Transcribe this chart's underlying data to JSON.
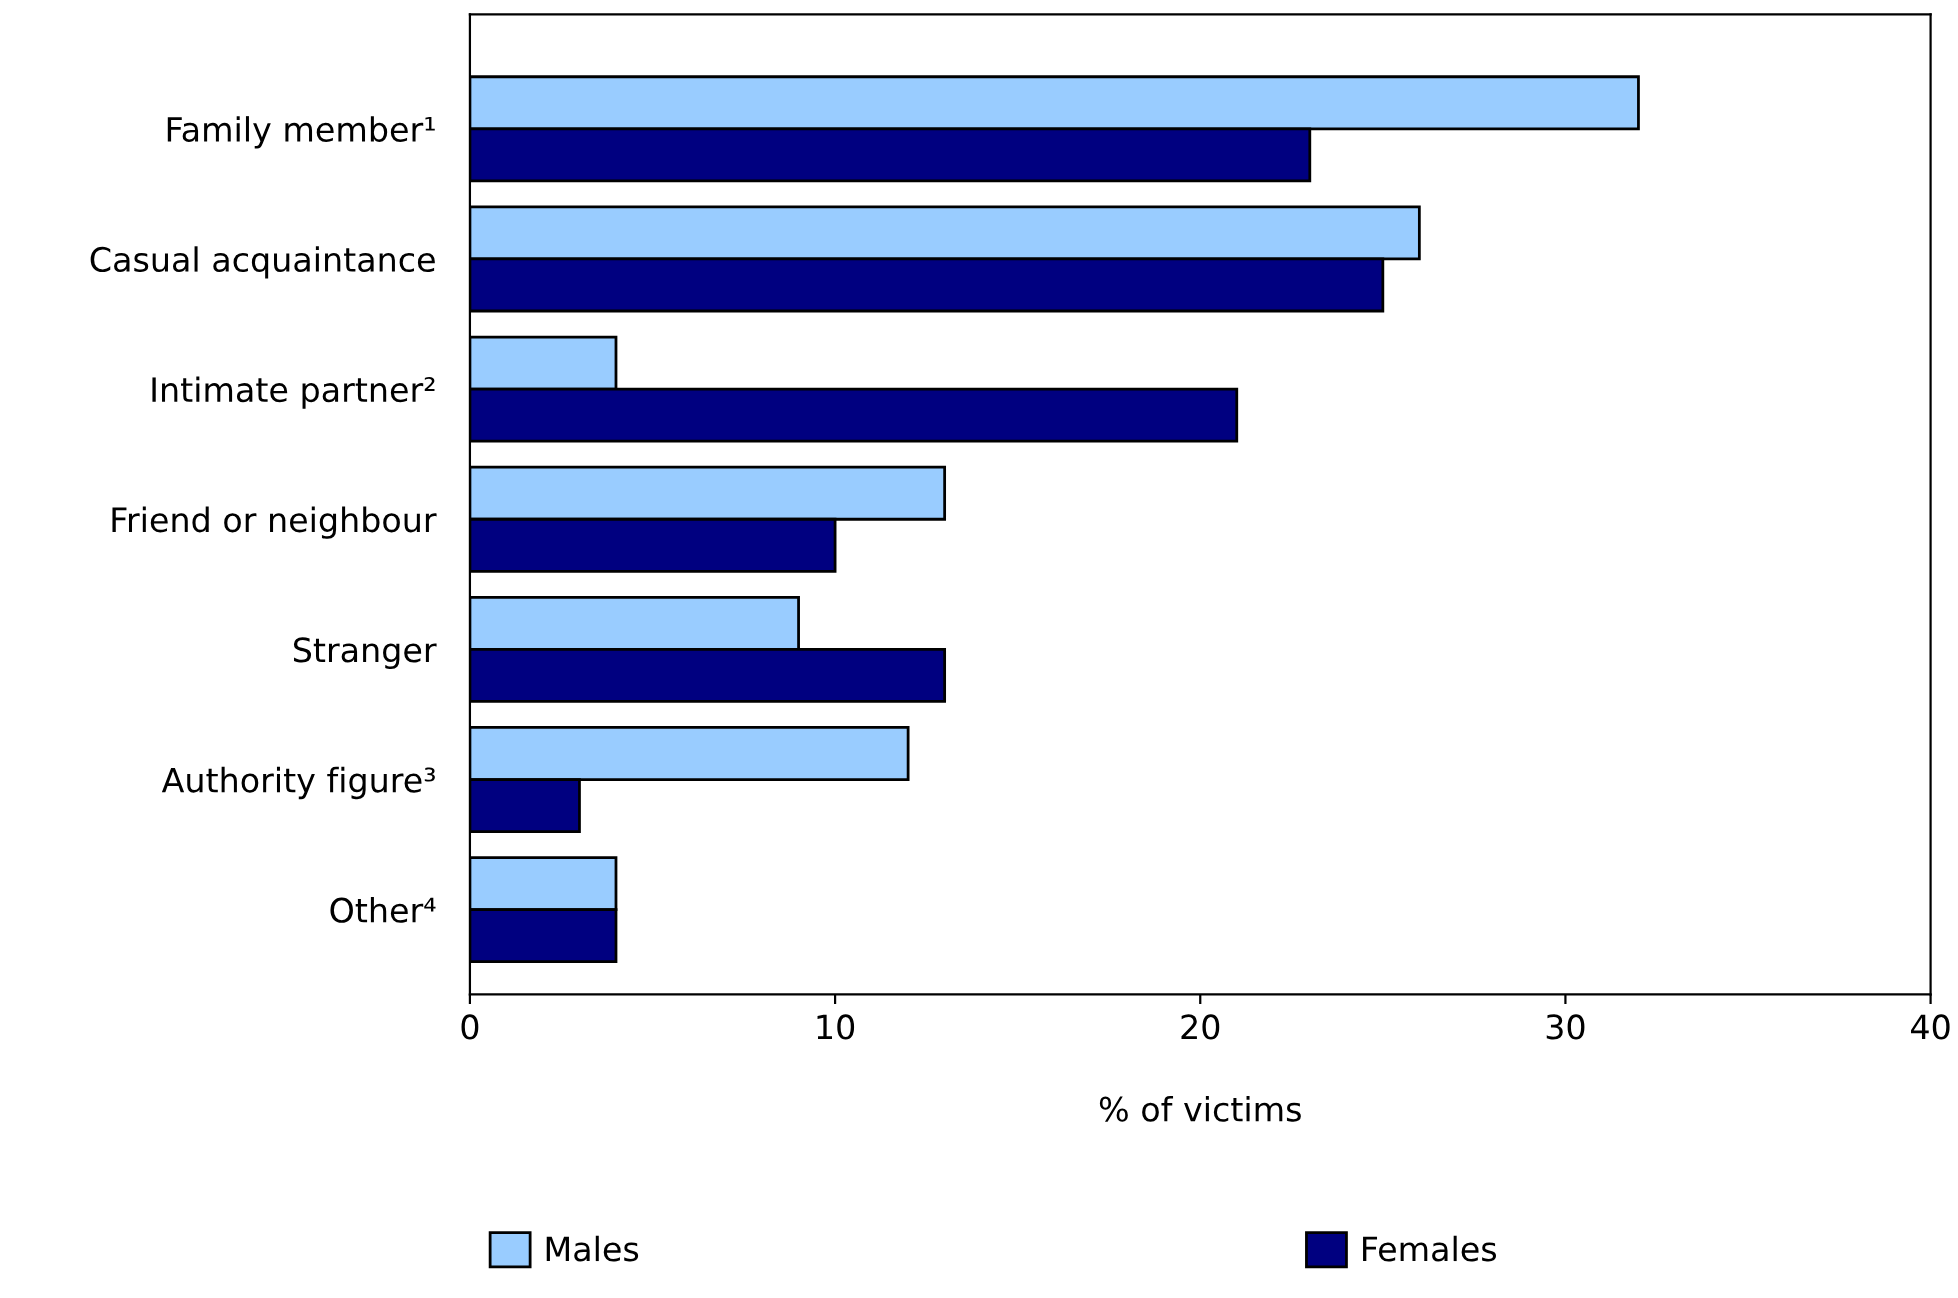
{
  "chart_data": {
    "type": "bar",
    "orientation": "horizontal",
    "xlabel": "% of victims",
    "categories": [
      "Family member¹",
      "Casual acquaintance",
      "Intimate partner²",
      "Friend or neighbour",
      "Stranger",
      "Authority figure³",
      "Other⁴"
    ],
    "series": [
      {
        "name": "Males",
        "color": "#99ccff",
        "values": [
          32,
          26,
          4,
          13,
          9,
          12,
          4
        ]
      },
      {
        "name": "Females",
        "color": "#000080",
        "values": [
          23,
          25,
          21,
          10,
          13,
          3,
          4
        ]
      }
    ],
    "xlim": [
      0,
      40
    ],
    "xticks": [
      0,
      10,
      20,
      30,
      40
    ],
    "grid": false,
    "legend": "bottom"
  }
}
